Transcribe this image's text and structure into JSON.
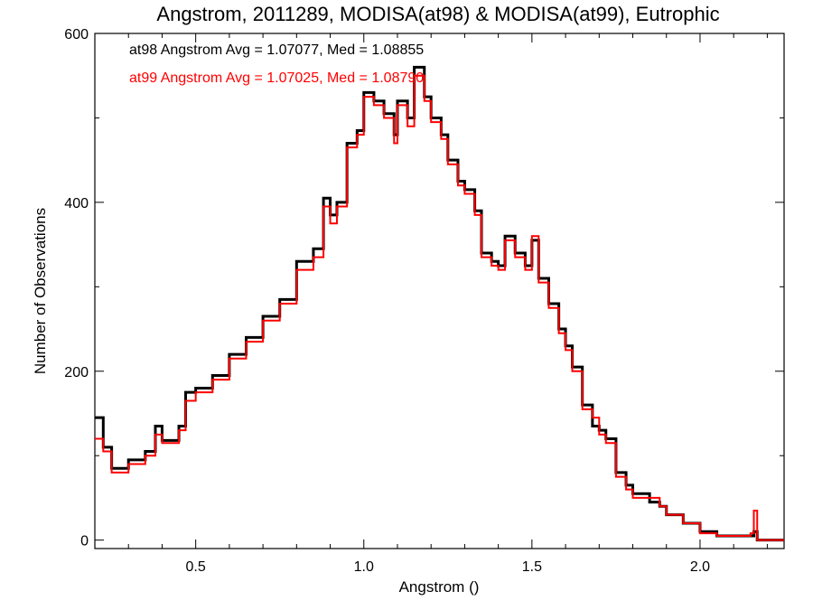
{
  "chart_data": {
    "type": "line",
    "step": true,
    "title": "Angstrom, 2011289, MODISA(at98) & MODISA(at99), Eutrophic",
    "xlabel": "Angstrom ()",
    "ylabel": "Number of Observations",
    "xlim": [
      0.2,
      2.25
    ],
    "ylim": [
      -10,
      600
    ],
    "xticks": [
      0.5,
      1.0,
      1.5,
      2.0
    ],
    "xtick_labels": [
      "0.5",
      "1.0",
      "1.5",
      "2.0"
    ],
    "yticks": [
      0,
      200,
      400,
      600
    ],
    "ytick_labels": [
      "0",
      "200",
      "400",
      "600"
    ],
    "grid": false,
    "legend": [
      {
        "text": "at98 Angstrom Avg = 1.07077, Med = 1.08855",
        "color": "#000000"
      },
      {
        "text": "at99 Angstrom Avg = 1.07025, Med = 1.08790",
        "color": "#ff0000"
      }
    ],
    "legend_position": "top-left",
    "series": [
      {
        "name": "at98",
        "color": "#000000",
        "points": [
          [
            0.2,
            145
          ],
          [
            0.225,
            110
          ],
          [
            0.25,
            85
          ],
          [
            0.3,
            95
          ],
          [
            0.35,
            105
          ],
          [
            0.38,
            135
          ],
          [
            0.4,
            118
          ],
          [
            0.45,
            135
          ],
          [
            0.47,
            175
          ],
          [
            0.5,
            180
          ],
          [
            0.55,
            195
          ],
          [
            0.6,
            220
          ],
          [
            0.65,
            240
          ],
          [
            0.7,
            265
          ],
          [
            0.75,
            285
          ],
          [
            0.8,
            330
          ],
          [
            0.85,
            345
          ],
          [
            0.88,
            405
          ],
          [
            0.9,
            385
          ],
          [
            0.92,
            400
          ],
          [
            0.95,
            470
          ],
          [
            0.98,
            485
          ],
          [
            1.0,
            530
          ],
          [
            1.03,
            520
          ],
          [
            1.06,
            505
          ],
          [
            1.09,
            480
          ],
          [
            1.1,
            520
          ],
          [
            1.13,
            500
          ],
          [
            1.15,
            560
          ],
          [
            1.18,
            525
          ],
          [
            1.2,
            500
          ],
          [
            1.23,
            480
          ],
          [
            1.25,
            450
          ],
          [
            1.28,
            425
          ],
          [
            1.3,
            415
          ],
          [
            1.33,
            390
          ],
          [
            1.35,
            340
          ],
          [
            1.38,
            330
          ],
          [
            1.4,
            325
          ],
          [
            1.42,
            360
          ],
          [
            1.45,
            340
          ],
          [
            1.48,
            325
          ],
          [
            1.5,
            355
          ],
          [
            1.52,
            310
          ],
          [
            1.55,
            280
          ],
          [
            1.58,
            250
          ],
          [
            1.6,
            230
          ],
          [
            1.62,
            205
          ],
          [
            1.65,
            160
          ],
          [
            1.68,
            135
          ],
          [
            1.7,
            130
          ],
          [
            1.72,
            120
          ],
          [
            1.75,
            80
          ],
          [
            1.78,
            65
          ],
          [
            1.8,
            55
          ],
          [
            1.85,
            45
          ],
          [
            1.88,
            40
          ],
          [
            1.9,
            30
          ],
          [
            1.95,
            20
          ],
          [
            2.0,
            10
          ],
          [
            2.05,
            5
          ],
          [
            2.1,
            5
          ],
          [
            2.15,
            5
          ],
          [
            2.16,
            10
          ],
          [
            2.17,
            0
          ],
          [
            2.25,
            0
          ]
        ]
      },
      {
        "name": "at99",
        "color": "#ff0000",
        "points": [
          [
            0.2,
            120
          ],
          [
            0.225,
            105
          ],
          [
            0.25,
            80
          ],
          [
            0.3,
            90
          ],
          [
            0.35,
            100
          ],
          [
            0.38,
            125
          ],
          [
            0.4,
            115
          ],
          [
            0.45,
            130
          ],
          [
            0.47,
            165
          ],
          [
            0.5,
            175
          ],
          [
            0.55,
            190
          ],
          [
            0.6,
            215
          ],
          [
            0.65,
            235
          ],
          [
            0.7,
            260
          ],
          [
            0.75,
            280
          ],
          [
            0.8,
            320
          ],
          [
            0.85,
            335
          ],
          [
            0.88,
            395
          ],
          [
            0.9,
            375
          ],
          [
            0.92,
            395
          ],
          [
            0.95,
            465
          ],
          [
            0.98,
            480
          ],
          [
            1.0,
            525
          ],
          [
            1.03,
            515
          ],
          [
            1.06,
            500
          ],
          [
            1.09,
            470
          ],
          [
            1.1,
            515
          ],
          [
            1.13,
            490
          ],
          [
            1.15,
            550
          ],
          [
            1.18,
            520
          ],
          [
            1.2,
            495
          ],
          [
            1.23,
            475
          ],
          [
            1.25,
            445
          ],
          [
            1.28,
            420
          ],
          [
            1.3,
            410
          ],
          [
            1.33,
            385
          ],
          [
            1.35,
            335
          ],
          [
            1.38,
            325
          ],
          [
            1.4,
            320
          ],
          [
            1.42,
            355
          ],
          [
            1.45,
            335
          ],
          [
            1.48,
            320
          ],
          [
            1.5,
            360
          ],
          [
            1.52,
            305
          ],
          [
            1.55,
            275
          ],
          [
            1.58,
            245
          ],
          [
            1.6,
            225
          ],
          [
            1.62,
            200
          ],
          [
            1.65,
            155
          ],
          [
            1.68,
            145
          ],
          [
            1.7,
            125
          ],
          [
            1.72,
            115
          ],
          [
            1.75,
            75
          ],
          [
            1.78,
            60
          ],
          [
            1.8,
            50
          ],
          [
            1.85,
            50
          ],
          [
            1.88,
            40
          ],
          [
            1.9,
            30
          ],
          [
            1.95,
            20
          ],
          [
            2.0,
            8
          ],
          [
            2.05,
            5
          ],
          [
            2.1,
            5
          ],
          [
            2.15,
            8
          ],
          [
            2.16,
            35
          ],
          [
            2.17,
            0
          ],
          [
            2.25,
            0
          ]
        ]
      }
    ]
  }
}
